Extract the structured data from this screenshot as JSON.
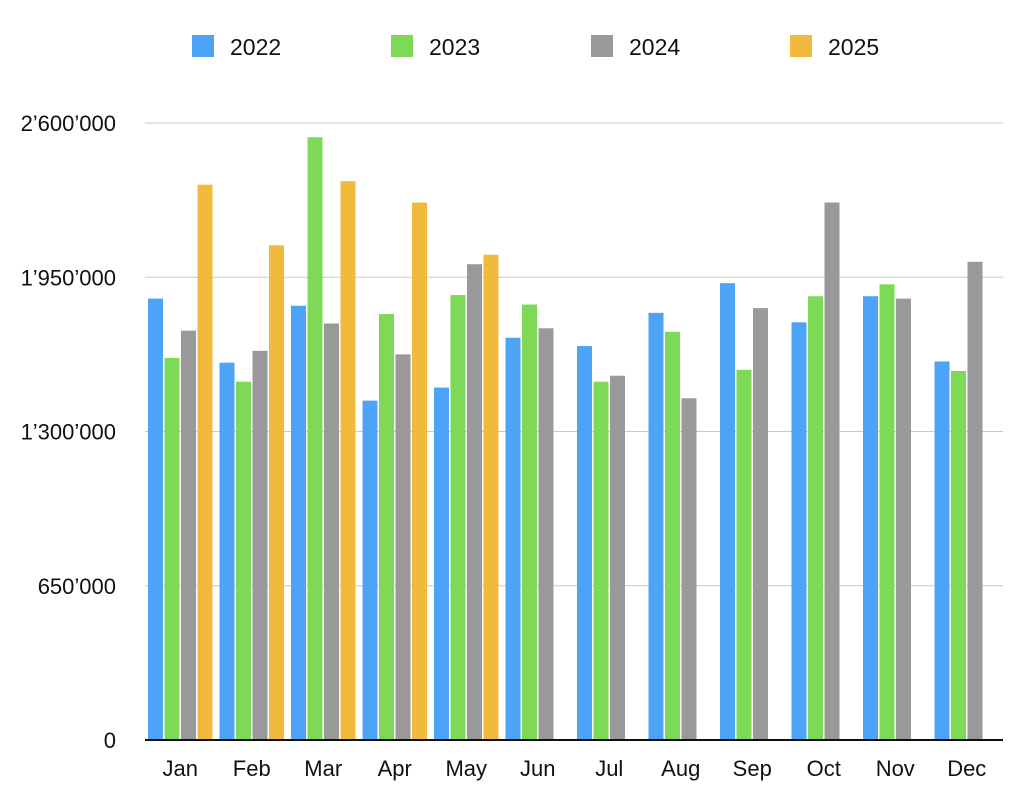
{
  "chart_data": {
    "type": "bar",
    "categories": [
      "Jan",
      "Feb",
      "Mar",
      "Apr",
      "May",
      "Jun",
      "Jul",
      "Aug",
      "Sep",
      "Oct",
      "Nov",
      "Dec"
    ],
    "series": [
      {
        "name": "2022",
        "color": "#4da3f5",
        "values": [
          1860000,
          1590000,
          1830000,
          1430000,
          1485000,
          1695000,
          1660000,
          1800000,
          1925000,
          1760000,
          1870000,
          1595000
        ]
      },
      {
        "name": "2023",
        "color": "#7ed957",
        "values": [
          1610000,
          1510000,
          2540000,
          1795000,
          1875000,
          1835000,
          1510000,
          1720000,
          1560000,
          1870000,
          1920000,
          1555000
        ]
      },
      {
        "name": "2024",
        "color": "#999999",
        "values": [
          1725000,
          1640000,
          1755000,
          1625000,
          2005000,
          1735000,
          1535000,
          1440000,
          1820000,
          2265000,
          1860000,
          2015000
        ]
      },
      {
        "name": "2025",
        "color": "#f0bb3c",
        "values": [
          2340000,
          2085000,
          2355000,
          2265000,
          2045000,
          null,
          null,
          null,
          null,
          null,
          null,
          null
        ]
      }
    ],
    "ylim": [
      0,
      2600000
    ],
    "yticks": [
      0,
      650000,
      1300000,
      1950000,
      2600000
    ],
    "ytick_labels": [
      "0",
      "650’000",
      "1’300’000",
      "1’950’000",
      "2’600’000"
    ],
    "title": "",
    "xlabel": "",
    "ylabel": "",
    "legend_position": "top",
    "grid": true
  }
}
